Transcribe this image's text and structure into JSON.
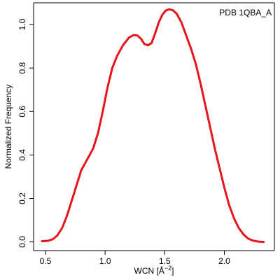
{
  "chart_data": {
    "type": "line",
    "annotation": "PDB 1QBA_A",
    "xlabel": "WCN [Å",
    "xlabel_exponent": "−2",
    "xlabel_close": "]",
    "ylabel": "Normalized Frequency",
    "xlim": [
      0.4,
      2.42
    ],
    "ylim": [
      -0.04,
      1.1
    ],
    "x_ticks": [
      {
        "value": 0.5,
        "label": "0.5"
      },
      {
        "value": 1.0,
        "label": "1.0"
      },
      {
        "value": 1.5,
        "label": "1.5"
      },
      {
        "value": 2.0,
        "label": "2.0"
      }
    ],
    "y_ticks": [
      {
        "value": 0.0,
        "label": "0.0"
      },
      {
        "value": 0.2,
        "label": "0.2"
      },
      {
        "value": 0.4,
        "label": "0.4"
      },
      {
        "value": 0.6,
        "label": "0.6"
      },
      {
        "value": 0.8,
        "label": "0.8"
      },
      {
        "value": 1.0,
        "label": "1.0"
      }
    ],
    "grid": false,
    "legend": "none",
    "series": [
      {
        "color": "#e8141b",
        "x": [
          0.47,
          0.52,
          0.56,
          0.6,
          0.64,
          0.68,
          0.72,
          0.76,
          0.8,
          0.85,
          0.9,
          0.94,
          0.98,
          1.02,
          1.06,
          1.1,
          1.15,
          1.2,
          1.24,
          1.27,
          1.3,
          1.33,
          1.36,
          1.39,
          1.42,
          1.45,
          1.48,
          1.51,
          1.54,
          1.57,
          1.6,
          1.64,
          1.68,
          1.72,
          1.76,
          1.8,
          1.84,
          1.88,
          1.92,
          1.96,
          2.0,
          2.04,
          2.08,
          2.12,
          2.16,
          2.2,
          2.24,
          2.28,
          2.33
        ],
        "y": [
          0.003,
          0.005,
          0.012,
          0.03,
          0.065,
          0.12,
          0.19,
          0.26,
          0.33,
          0.38,
          0.43,
          0.5,
          0.6,
          0.71,
          0.8,
          0.855,
          0.905,
          0.94,
          0.952,
          0.95,
          0.935,
          0.91,
          0.905,
          0.915,
          0.96,
          1.01,
          1.045,
          1.065,
          1.07,
          1.065,
          1.05,
          1.01,
          0.95,
          0.89,
          0.82,
          0.73,
          0.63,
          0.53,
          0.43,
          0.34,
          0.25,
          0.17,
          0.11,
          0.065,
          0.035,
          0.015,
          0.006,
          0.002,
          0.0
        ]
      }
    ]
  }
}
